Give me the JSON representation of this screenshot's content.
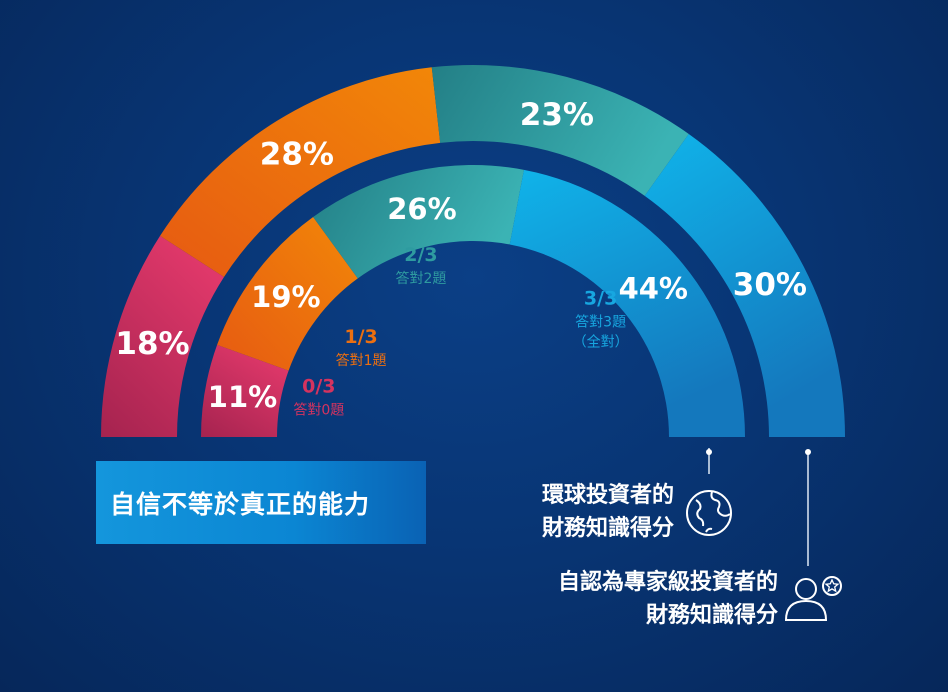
{
  "colors": {
    "background": "#083574",
    "score0": "#d5335f",
    "score1": "#ec6f10",
    "score2": "#2e9ba0",
    "score3": "#17a7e0"
  },
  "chart_data": {
    "type": "semi-donut",
    "title": "",
    "categories": [
      "0/3",
      "1/3",
      "2/3",
      "3/3"
    ],
    "category_labels": [
      {
        "score": "0/3",
        "desc": [
          "答對0題"
        ]
      },
      {
        "score": "1/3",
        "desc": [
          "答對1題"
        ]
      },
      {
        "score": "2/3",
        "desc": [
          "答對2題"
        ]
      },
      {
        "score": "3/3",
        "desc": [
          "答對3題",
          "（全對）"
        ]
      }
    ],
    "series": [
      {
        "name": "環球投資者的財務知識得分",
        "ring": "inner",
        "values": [
          11,
          19,
          26,
          44
        ]
      },
      {
        "name": "自認為專家級投資者的財務知識得分",
        "ring": "outer",
        "values": [
          18,
          28,
          23,
          30
        ]
      }
    ],
    "unit": "%"
  },
  "banner": {
    "text": "自信不等於真正的能力"
  },
  "legend": {
    "global": {
      "line1": "環球投資者的",
      "line2": "財務知識得分",
      "icon": "globe-icon"
    },
    "self": {
      "line1": "自認為專家級投資者的",
      "line2": "財務知識得分",
      "icon": "expert-user-icon"
    }
  }
}
